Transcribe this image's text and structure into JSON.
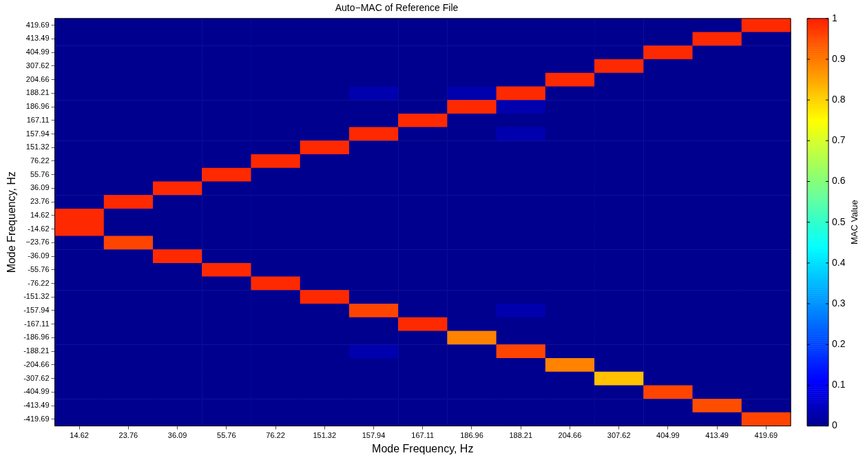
{
  "chart_data": {
    "type": "heatmap",
    "title": "Auto−MAC of Reference File",
    "xlabel": "Mode Frequency, Hz",
    "ylabel": "Mode Frequency, Hz",
    "clabel": "MAC Value",
    "categories": [
      "14.62",
      "23.76",
      "36.09",
      "55.76",
      "76.22",
      "151.32",
      "157.94",
      "167.11",
      "186.96",
      "188.21",
      "204.66",
      "307.62",
      "404.99",
      "413.49",
      "419.69"
    ],
    "y_categories": [
      "419.69",
      "413.49",
      "404.99",
      "307.62",
      "204.66",
      "188.21",
      "186.96",
      "167.11",
      "157.94",
      "151.32",
      "76.22",
      "55.76",
      "36.09",
      "23.76",
      "14.62",
      "-14.62",
      "−23.76",
      "-36.09",
      "-55.76",
      "-76.22",
      "-151.32",
      "-157.94",
      "-167.11",
      "-186.96",
      "-188.21",
      "-204.66",
      "-307.62",
      "-404.99",
      "-413.49",
      "-419.69"
    ],
    "cells": [
      [
        0,
        0,
        0,
        0,
        0,
        0,
        0,
        0,
        0,
        0,
        0,
        0,
        0,
        0,
        0.99
      ],
      [
        0,
        0,
        0,
        0,
        0,
        0,
        0,
        0,
        0,
        0,
        0,
        0,
        0,
        0.99,
        0
      ],
      [
        0,
        0,
        0,
        0,
        0,
        0,
        0,
        0,
        0,
        0,
        0,
        0,
        0.99,
        0,
        0
      ],
      [
        0,
        0,
        0,
        0,
        0,
        0,
        0,
        0,
        0,
        0,
        0,
        0.99,
        0,
        0,
        0
      ],
      [
        0,
        0,
        0,
        0,
        0,
        0,
        0,
        0,
        0,
        0,
        0.99,
        0,
        0,
        0,
        0
      ],
      [
        0,
        0,
        0,
        0,
        0,
        0,
        0.03,
        0,
        0.03,
        0.99,
        0,
        0,
        0,
        0,
        0
      ],
      [
        0,
        0,
        0,
        0,
        0,
        0,
        0,
        0,
        0.99,
        0.03,
        0,
        0,
        0,
        0,
        0
      ],
      [
        0,
        0,
        0,
        0,
        0,
        0,
        0,
        0.99,
        0,
        0,
        0,
        0,
        0,
        0,
        0
      ],
      [
        0,
        0,
        0,
        0,
        0,
        0,
        0.99,
        0,
        0,
        0.03,
        0,
        0,
        0,
        0,
        0
      ],
      [
        0,
        0,
        0,
        0,
        0,
        0.99,
        0,
        0,
        0,
        0,
        0,
        0,
        0,
        0,
        0
      ],
      [
        0,
        0,
        0,
        0,
        0.99,
        0,
        0,
        0,
        0,
        0,
        0,
        0,
        0,
        0,
        0
      ],
      [
        0,
        0,
        0,
        0.99,
        0,
        0,
        0,
        0,
        0,
        0,
        0,
        0,
        0,
        0,
        0
      ],
      [
        0,
        0,
        0.99,
        0,
        0,
        0,
        0,
        0,
        0,
        0,
        0,
        0,
        0,
        0,
        0
      ],
      [
        0,
        0.99,
        0,
        0,
        0,
        0,
        0,
        0,
        0,
        0,
        0,
        0,
        0,
        0,
        0
      ],
      [
        0.99,
        0,
        0,
        0,
        0,
        0,
        0,
        0,
        0,
        0,
        0,
        0,
        0,
        0,
        0
      ],
      [
        0.99,
        0,
        0,
        0,
        0,
        0,
        0,
        0,
        0,
        0,
        0,
        0,
        0,
        0,
        0
      ],
      [
        0,
        0.96,
        0,
        0,
        0,
        0,
        0,
        0,
        0,
        0,
        0,
        0,
        0,
        0,
        0
      ],
      [
        0,
        0,
        0.99,
        0,
        0,
        0,
        0,
        0,
        0,
        0,
        0,
        0,
        0,
        0,
        0
      ],
      [
        0,
        0,
        0,
        0.99,
        0,
        0,
        0,
        0,
        0,
        0,
        0,
        0,
        0,
        0,
        0
      ],
      [
        0,
        0,
        0,
        0,
        0.99,
        0,
        0,
        0,
        0,
        0,
        0,
        0,
        0,
        0,
        0
      ],
      [
        0,
        0,
        0,
        0,
        0,
        0.99,
        0,
        0,
        0,
        0,
        0,
        0,
        0,
        0,
        0
      ],
      [
        0,
        0,
        0,
        0,
        0,
        0,
        0.96,
        0,
        0,
        0.03,
        0,
        0,
        0,
        0,
        0
      ],
      [
        0,
        0,
        0,
        0,
        0,
        0,
        0,
        0.99,
        0,
        0,
        0,
        0,
        0,
        0,
        0
      ],
      [
        0,
        0,
        0,
        0,
        0,
        0,
        0,
        0,
        0.89,
        0,
        0,
        0,
        0,
        0,
        0
      ],
      [
        0,
        0,
        0,
        0,
        0,
        0,
        0.03,
        0,
        0,
        0.96,
        0,
        0,
        0,
        0,
        0
      ],
      [
        0,
        0,
        0,
        0,
        0,
        0,
        0,
        0,
        0,
        0,
        0.89,
        0,
        0,
        0,
        0
      ],
      [
        0,
        0,
        0,
        0,
        0,
        0,
        0,
        0,
        0,
        0,
        0,
        0.82,
        0,
        0,
        0
      ],
      [
        0,
        0,
        0,
        0,
        0,
        0,
        0,
        0,
        0,
        0,
        0,
        0,
        0.96,
        0,
        0
      ],
      [
        0,
        0,
        0,
        0,
        0,
        0,
        0,
        0,
        0,
        0,
        0,
        0,
        0,
        0.95,
        0
      ],
      [
        0,
        0,
        0,
        0,
        0,
        0,
        0,
        0,
        0,
        0,
        0,
        0,
        0,
        0,
        0.96
      ]
    ],
    "clim": [
      0,
      1
    ],
    "cticks": [
      0,
      0.1,
      0.2,
      0.3,
      0.4,
      0.5,
      0.6,
      0.7,
      0.8,
      0.9,
      1
    ]
  }
}
